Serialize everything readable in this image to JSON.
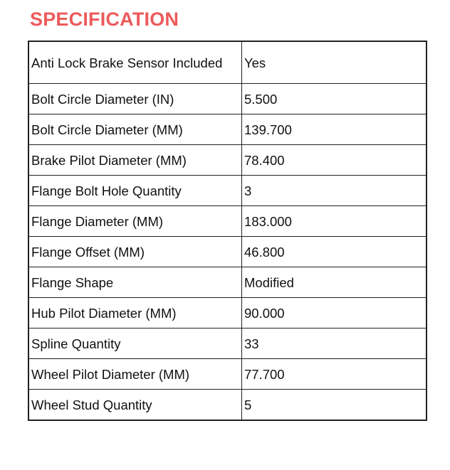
{
  "title": "SPECIFICATION",
  "rows": [
    {
      "label": "Anti Lock Brake Sensor Included",
      "value": "Yes"
    },
    {
      "label": "Bolt Circle Diameter (IN)",
      "value": "5.500"
    },
    {
      "label": "Bolt Circle Diameter (MM)",
      "value": "139.700"
    },
    {
      "label": "Brake Pilot Diameter (MM)",
      "value": "78.400"
    },
    {
      "label": "Flange Bolt Hole Quantity",
      "value": "3"
    },
    {
      "label": "Flange Diameter (MM)",
      "value": "183.000"
    },
    {
      "label": "Flange Offset (MM)",
      "value": "46.800"
    },
    {
      "label": "Flange Shape",
      "value": "Modified"
    },
    {
      "label": "Hub Pilot Diameter (MM)",
      "value": "90.000"
    },
    {
      "label": "Spline Quantity",
      "value": "33"
    },
    {
      "label": "Wheel Pilot Diameter (MM)",
      "value": "77.700"
    },
    {
      "label": "Wheel Stud Quantity",
      "value": "5"
    }
  ]
}
